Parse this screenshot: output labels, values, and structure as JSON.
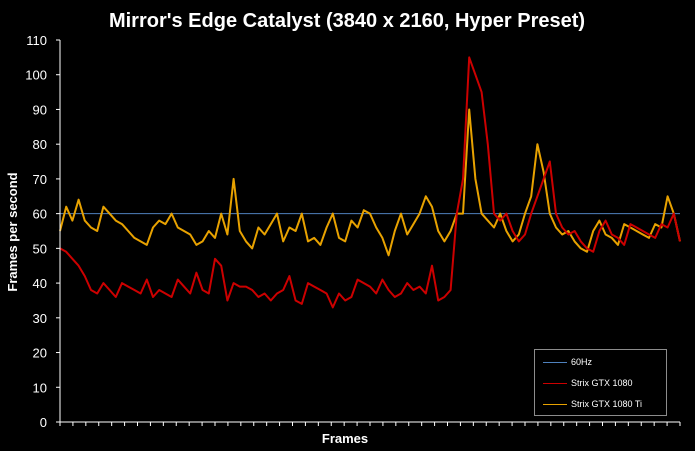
{
  "chart_data": {
    "type": "line",
    "title": "Mirror's Edge Catalyst (3840 x 2160, Hyper Preset)",
    "xlabel": "Frames",
    "ylabel": "Frames per second",
    "ylim": [
      0,
      110
    ],
    "yticks": [
      0,
      10,
      20,
      30,
      40,
      50,
      60,
      70,
      80,
      90,
      100,
      110
    ],
    "grid": false,
    "legend_position": "bottom-right",
    "colors": {
      "background": "#000000",
      "axis": "#ffffff",
      "hz60": "#4f81bd",
      "gtx1080": "#cc0000",
      "gtx1080ti": "#e8a200"
    },
    "series": [
      {
        "name": "60Hz",
        "color": "#4f81bd",
        "x": [
          0,
          100
        ],
        "values": [
          60,
          60
        ]
      },
      {
        "name": "Strix GTX 1080",
        "color": "#cc0000",
        "x": [
          0,
          1,
          2,
          3,
          4,
          5,
          6,
          7,
          8,
          9,
          10,
          11,
          12,
          13,
          14,
          15,
          16,
          17,
          18,
          19,
          20,
          21,
          22,
          23,
          24,
          25,
          26,
          27,
          28,
          29,
          30,
          31,
          32,
          33,
          34,
          35,
          36,
          37,
          38,
          39,
          40,
          41,
          42,
          43,
          44,
          45,
          46,
          47,
          48,
          49,
          50,
          51,
          52,
          53,
          54,
          55,
          56,
          57,
          58,
          59,
          60,
          61,
          62,
          63,
          64,
          65,
          66,
          67,
          68,
          69,
          70,
          71,
          72,
          73,
          74,
          75,
          76,
          77,
          78,
          79,
          80,
          81,
          82,
          83,
          84,
          85,
          86,
          87,
          88,
          89,
          90,
          91,
          92,
          93,
          94,
          95,
          96,
          97,
          98,
          99,
          100
        ],
        "values": [
          50,
          49,
          47,
          45,
          42,
          38,
          37,
          40,
          38,
          36,
          40,
          39,
          38,
          37,
          41,
          36,
          38,
          37,
          36,
          41,
          39,
          37,
          43,
          38,
          37,
          47,
          45,
          35,
          40,
          39,
          39,
          38,
          36,
          37,
          35,
          37,
          38,
          42,
          35,
          34,
          40,
          39,
          38,
          37,
          33,
          37,
          35,
          36,
          41,
          40,
          39,
          37,
          41,
          38,
          36,
          37,
          40,
          38,
          39,
          37,
          45,
          35,
          36,
          38,
          60,
          70,
          105,
          100,
          95,
          80,
          60,
          58,
          60,
          55,
          52,
          54,
          60,
          65,
          70,
          75,
          60,
          56,
          54,
          55,
          52,
          50,
          49,
          55,
          58,
          54,
          53,
          51,
          57,
          56,
          55,
          54,
          53,
          57,
          56,
          60,
          52
        ]
      },
      {
        "name": "Strix GTX 1080 Ti",
        "color": "#e8a200",
        "x": [
          0,
          1,
          2,
          3,
          4,
          5,
          6,
          7,
          8,
          9,
          10,
          11,
          12,
          13,
          14,
          15,
          16,
          17,
          18,
          19,
          20,
          21,
          22,
          23,
          24,
          25,
          26,
          27,
          28,
          29,
          30,
          31,
          32,
          33,
          34,
          35,
          36,
          37,
          38,
          39,
          40,
          41,
          42,
          43,
          44,
          45,
          46,
          47,
          48,
          49,
          50,
          51,
          52,
          53,
          54,
          55,
          56,
          57,
          58,
          59,
          60,
          61,
          62,
          63,
          64,
          65,
          66,
          67,
          68,
          69,
          70,
          71,
          72,
          73,
          74,
          75,
          76,
          77,
          78,
          79,
          80,
          81,
          82,
          83,
          84,
          85,
          86,
          87,
          88,
          89,
          90,
          91,
          92,
          93,
          94,
          95,
          96,
          97,
          98,
          99,
          100
        ],
        "values": [
          55,
          62,
          58,
          64,
          58,
          56,
          55,
          62,
          60,
          58,
          57,
          55,
          53,
          52,
          51,
          56,
          58,
          57,
          60,
          56,
          55,
          54,
          51,
          52,
          55,
          53,
          60,
          54,
          70,
          55,
          52,
          50,
          56,
          54,
          57,
          60,
          52,
          56,
          55,
          60,
          52,
          53,
          51,
          56,
          60,
          53,
          52,
          58,
          56,
          61,
          60,
          56,
          53,
          48,
          55,
          60,
          54,
          57,
          60,
          65,
          62,
          55,
          52,
          55,
          60,
          60,
          90,
          70,
          60,
          58,
          56,
          60,
          55,
          52,
          54,
          60,
          65,
          80,
          72,
          60,
          56,
          54,
          55,
          52,
          50,
          49,
          55,
          58,
          54,
          53,
          51,
          57,
          56,
          55,
          54,
          53,
          57,
          56,
          65,
          60,
          52
        ]
      }
    ]
  }
}
